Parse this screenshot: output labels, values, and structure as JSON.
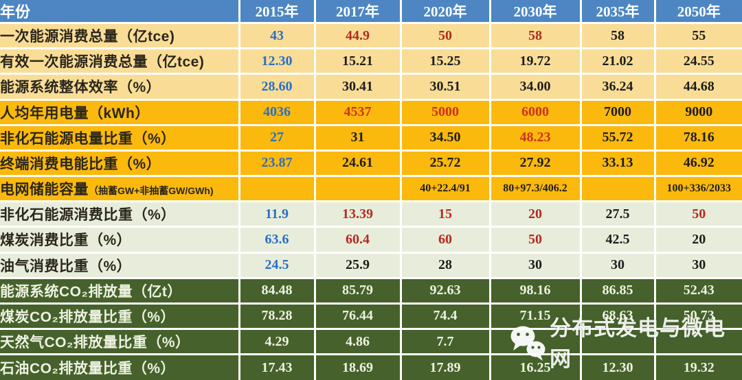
{
  "table": {
    "corner_label": "年份",
    "years": [
      "2015年",
      "2017年",
      "2020年",
      "2030年",
      "2035年",
      "2050年"
    ],
    "rows": [
      {
        "label": "一次能源消费总量（亿tce)",
        "group": "paleYellow",
        "values": [
          "43",
          "44.9",
          "50",
          "58",
          "58",
          "55"
        ],
        "colors": [
          "blue",
          "red",
          "red",
          "red",
          "black",
          "black"
        ]
      },
      {
        "label": "有效一次能源消费总量（亿tce)",
        "group": "paleYellow",
        "values": [
          "12.30",
          "15.21",
          "15.25",
          "19.72",
          "21.02",
          "24.55"
        ],
        "colors": [
          "blue",
          "black",
          "black",
          "black",
          "black",
          "black"
        ]
      },
      {
        "label": "能源系统整体效率（%）",
        "group": "paleYellow",
        "values": [
          "28.60",
          "30.41",
          "30.51",
          "34.00",
          "36.24",
          "44.68"
        ],
        "colors": [
          "blue",
          "black",
          "black",
          "black",
          "black",
          "black"
        ]
      },
      {
        "label": "人均年用电量（kWh）",
        "group": "gold",
        "values": [
          "4036",
          "4537",
          "5000",
          "6000",
          "7000",
          "9000"
        ],
        "colors": [
          "blue",
          "red",
          "red",
          "red",
          "black",
          "black"
        ]
      },
      {
        "label": "非化石能源电量比重（%）",
        "group": "gold",
        "values": [
          "27",
          "31",
          "34.50",
          "48.23",
          "55.72",
          "78.16"
        ],
        "colors": [
          "blue",
          "black",
          "black",
          "red",
          "black",
          "black"
        ]
      },
      {
        "label": "终端消费电能比重（%）",
        "group": "gold",
        "values": [
          "23.87",
          "24.61",
          "25.72",
          "27.92",
          "33.13",
          "46.92"
        ],
        "colors": [
          "blue",
          "black",
          "black",
          "black",
          "black",
          "black"
        ]
      },
      {
        "label": "电网储能容量",
        "suffix": "（抽蓄GW+非抽蓄GW/GWh)",
        "group": "gold",
        "small": true,
        "values": [
          "",
          "",
          "40+22.4/91",
          "80+97.3/406.2",
          "",
          "100+336/2033"
        ],
        "colors": [
          "black",
          "black",
          "black",
          "black",
          "black",
          "black"
        ]
      },
      {
        "label": "非化石能源消费比重（%）",
        "group": "paleGreen",
        "values": [
          "11.9",
          "13.39",
          "15",
          "20",
          "27.5",
          "50"
        ],
        "colors": [
          "blue",
          "red",
          "red",
          "red",
          "black",
          "red"
        ]
      },
      {
        "label": "煤炭消费比重（%）",
        "group": "paleGreen",
        "values": [
          "63.6",
          "60.4",
          "60",
          "50",
          "42.5",
          "20"
        ],
        "colors": [
          "blue",
          "red",
          "red",
          "red",
          "black",
          "black"
        ]
      },
      {
        "label": "油气消费比重（%）",
        "group": "paleGreen",
        "values": [
          "24.5",
          "25.9",
          "28",
          "30",
          "30",
          "30"
        ],
        "colors": [
          "blue",
          "black",
          "black",
          "black",
          "black",
          "black"
        ]
      },
      {
        "label": "能源系统CO₂排放量（亿t）",
        "group": "darkGreen",
        "values": [
          "84.48",
          "85.79",
          "92.63",
          "98.16",
          "86.85",
          "52.43"
        ],
        "colors": [
          "white",
          "white",
          "white",
          "white",
          "white",
          "white"
        ]
      },
      {
        "label": "煤炭CO₂排放量比重（%）",
        "group": "darkGreen",
        "values": [
          "78.28",
          "76.44",
          "74.4",
          "71.15",
          "68.63",
          "50.73"
        ],
        "colors": [
          "white",
          "white",
          "white",
          "white",
          "white",
          "white"
        ]
      },
      {
        "label": "天然气CO₂排放量比重（%）",
        "group": "darkGreen",
        "values": [
          "4.29",
          "4.86",
          "7.7",
          "",
          "",
          ""
        ],
        "colors": [
          "white",
          "white",
          "white",
          "white",
          "white",
          "white"
        ]
      },
      {
        "label": "石油CO₂排放量比重（%）",
        "group": "darkGreen",
        "values": [
          "17.43",
          "18.69",
          "17.89",
          "16.25",
          "12.30",
          "19.32"
        ],
        "colors": [
          "white",
          "white",
          "white",
          "white",
          "white",
          "white"
        ]
      }
    ]
  },
  "watermark": {
    "text": "分布式发电与微电网",
    "icon": "wechat-icon"
  },
  "colors": {
    "header_bg": "#4d86c2",
    "pale_yellow_bg": "#f9dd96",
    "gold_bg": "#fbb90d",
    "pale_green_bg": "#e8eddb",
    "dark_green_bg": "#46612b",
    "value_blue": "#2a6fc4",
    "value_red": "#b52a20",
    "value_black": "#1d1d1d",
    "value_white": "#edf2e2"
  },
  "chart_data": {
    "type": "table",
    "columns": [
      "年份",
      "2015年",
      "2017年",
      "2020年",
      "2030年",
      "2035年",
      "2050年"
    ],
    "rows": [
      [
        "一次能源消费总量（亿tce)",
        "43",
        "44.9",
        "50",
        "58",
        "58",
        "55"
      ],
      [
        "有效一次能源消费总量（亿tce)",
        "12.30",
        "15.21",
        "15.25",
        "19.72",
        "21.02",
        "24.55"
      ],
      [
        "能源系统整体效率（%）",
        "28.60",
        "30.41",
        "30.51",
        "34.00",
        "36.24",
        "44.68"
      ],
      [
        "人均年用电量（kWh）",
        "4036",
        "4537",
        "5000",
        "6000",
        "7000",
        "9000"
      ],
      [
        "非化石能源电量比重（%）",
        "27",
        "31",
        "34.50",
        "48.23",
        "55.72",
        "78.16"
      ],
      [
        "终端消费电能比重（%）",
        "23.87",
        "24.61",
        "25.72",
        "27.92",
        "33.13",
        "46.92"
      ],
      [
        "电网储能容量（抽蓄GW+非抽蓄GW/GWh)",
        "",
        "",
        "40+22.4/91",
        "80+97.3/406.2",
        "",
        "100+336/2033"
      ],
      [
        "非化石能源消费比重（%）",
        "11.9",
        "13.39",
        "15",
        "20",
        "27.5",
        "50"
      ],
      [
        "煤炭消费比重（%）",
        "63.6",
        "60.4",
        "60",
        "50",
        "42.5",
        "20"
      ],
      [
        "油气消费比重（%）",
        "24.5",
        "25.9",
        "28",
        "30",
        "30",
        "30"
      ],
      [
        "能源系统CO₂排放量（亿t）",
        "84.48",
        "85.79",
        "92.63",
        "98.16",
        "86.85",
        "52.43"
      ],
      [
        "煤炭CO₂排放量比重（%）",
        "78.28",
        "76.44",
        "74.4",
        "71.15",
        "68.63",
        "50.73"
      ],
      [
        "天然气CO₂排放量比重（%）",
        "4.29",
        "4.86",
        "7.7",
        "",
        "",
        ""
      ],
      [
        "石油CO₂排放量比重（%）",
        "17.43",
        "18.69",
        "17.89",
        "16.25",
        "12.30",
        "19.32"
      ]
    ]
  }
}
